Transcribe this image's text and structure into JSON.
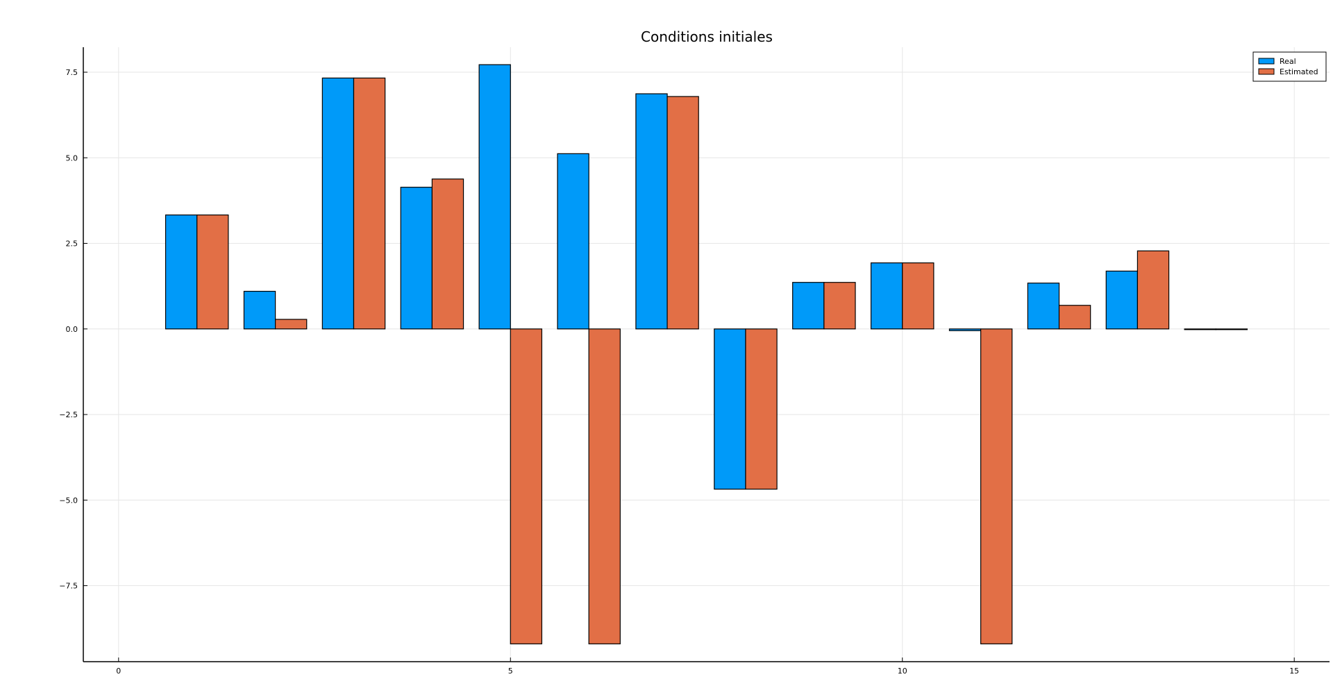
{
  "chart_data": {
    "type": "bar",
    "title": "Conditions initiales",
    "xlabel": "",
    "ylabel": "",
    "x": [
      1,
      2,
      3,
      4,
      5,
      6,
      7,
      8,
      9,
      10,
      11,
      12,
      13,
      14
    ],
    "series": [
      {
        "name": "Real",
        "color": "#009af9",
        "values": [
          3.33,
          1.1,
          7.33,
          4.14,
          7.72,
          5.12,
          6.87,
          -4.68,
          1.36,
          1.93,
          -0.05,
          1.34,
          1.69,
          0.0
        ]
      },
      {
        "name": "Estimated",
        "color": "#e26f46",
        "values": [
          3.33,
          0.28,
          7.33,
          4.38,
          -9.2,
          -9.2,
          6.79,
          -4.68,
          1.36,
          1.93,
          -9.2,
          0.69,
          2.28,
          0.0
        ]
      }
    ],
    "xlim": [
      -0.45,
      15.45
    ],
    "ylim": [
      -9.72,
      8.23
    ],
    "xticks": [
      0,
      5,
      10,
      15
    ],
    "xtick_labels": [
      "0",
      "5",
      "10",
      "15"
    ],
    "yticks": [
      7.5,
      5.0,
      2.5,
      0.0,
      -2.5,
      -5.0,
      -7.5
    ],
    "ytick_labels": [
      "7.5",
      "5.0",
      "2.5",
      "0.0",
      "−2.5",
      "−5.0",
      "−7.5"
    ],
    "grid": true,
    "legend_position": "top-right"
  }
}
